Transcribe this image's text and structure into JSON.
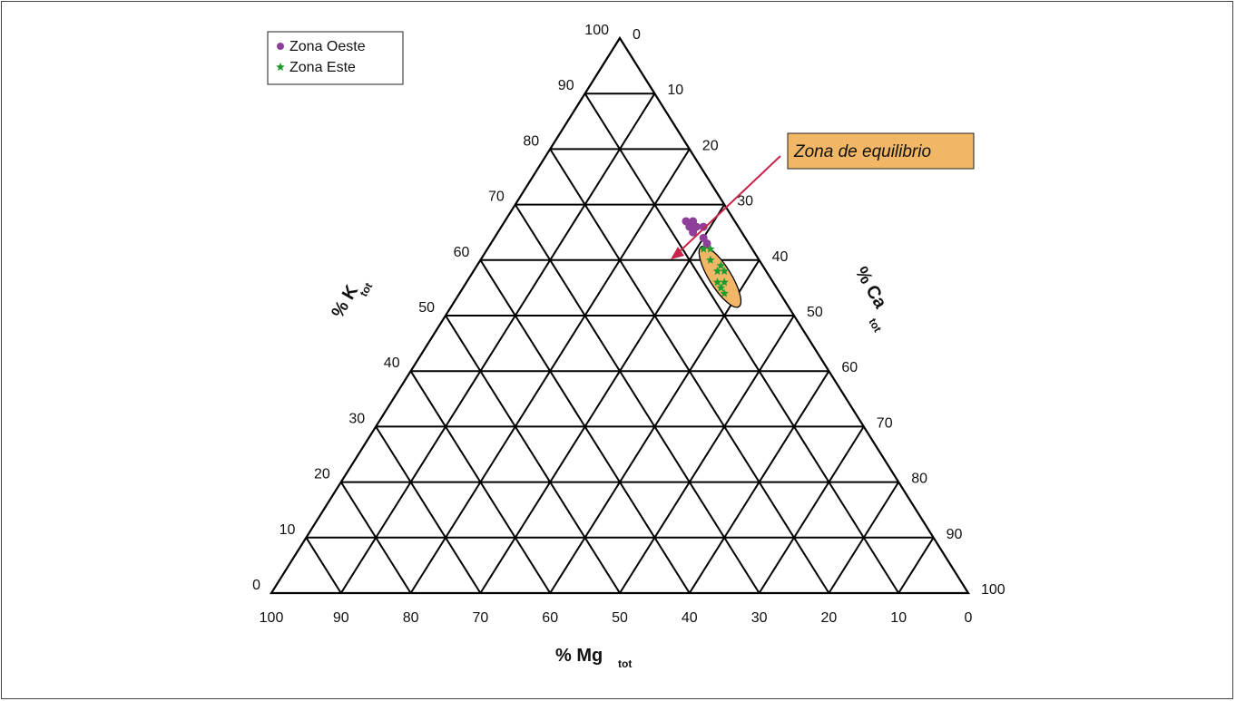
{
  "chart_data": {
    "type": "scatter",
    "subtype": "ternary",
    "grid": true,
    "grid_step": 10,
    "axes": {
      "left": {
        "label": "% K",
        "subscript": "tot",
        "ticks": [
          "0",
          "10",
          "20",
          "30",
          "40",
          "50",
          "60",
          "70",
          "80",
          "90",
          "100"
        ]
      },
      "right": {
        "label": "% Ca",
        "subscript": "tot",
        "ticks": [
          "0",
          "10",
          "20",
          "30",
          "40",
          "50",
          "60",
          "70",
          "80",
          "90",
          "100"
        ]
      },
      "bottom": {
        "label": "% Mg",
        "subscript": "tot",
        "ticks": [
          "100",
          "90",
          "80",
          "70",
          "60",
          "50",
          "40",
          "30",
          "20",
          "10",
          "0"
        ]
      }
    },
    "legend": {
      "placement": "top-left"
    },
    "series": [
      {
        "name": "Zona Oeste",
        "marker": "circle",
        "color": "#8e3f9a",
        "points": [
          {
            "K": 67,
            "Ca": 26,
            "Mg": 7
          },
          {
            "K": 67,
            "Ca": 27,
            "Mg": 6
          },
          {
            "K": 66,
            "Ca": 27,
            "Mg": 7
          },
          {
            "K": 66,
            "Ca": 28,
            "Mg": 6
          },
          {
            "K": 66,
            "Ca": 29,
            "Mg": 5
          },
          {
            "K": 65,
            "Ca": 28,
            "Mg": 7
          },
          {
            "K": 64,
            "Ca": 30,
            "Mg": 6
          },
          {
            "K": 63,
            "Ca": 31,
            "Mg": 6
          }
        ]
      },
      {
        "name": "Zona Este",
        "marker": "star",
        "color": "#1f9a2e",
        "points": [
          {
            "K": 62,
            "Ca": 31,
            "Mg": 7
          },
          {
            "K": 62,
            "Ca": 32,
            "Mg": 6
          },
          {
            "K": 60,
            "Ca": 33,
            "Mg": 7
          },
          {
            "K": 59,
            "Ca": 35,
            "Mg": 6
          },
          {
            "K": 58,
            "Ca": 35,
            "Mg": 7
          },
          {
            "K": 58,
            "Ca": 36,
            "Mg": 6
          },
          {
            "K": 56,
            "Ca": 36,
            "Mg": 8
          },
          {
            "K": 56,
            "Ca": 37,
            "Mg": 7
          },
          {
            "K": 55,
            "Ca": 37,
            "Mg": 8
          },
          {
            "K": 54,
            "Ca": 38,
            "Mg": 8
          }
        ]
      }
    ],
    "annotation": {
      "text": "Zona de equilibrio",
      "background": "#f2b766",
      "arrow_color": "#c8244a",
      "ellipse_color": "#f2b766"
    }
  }
}
